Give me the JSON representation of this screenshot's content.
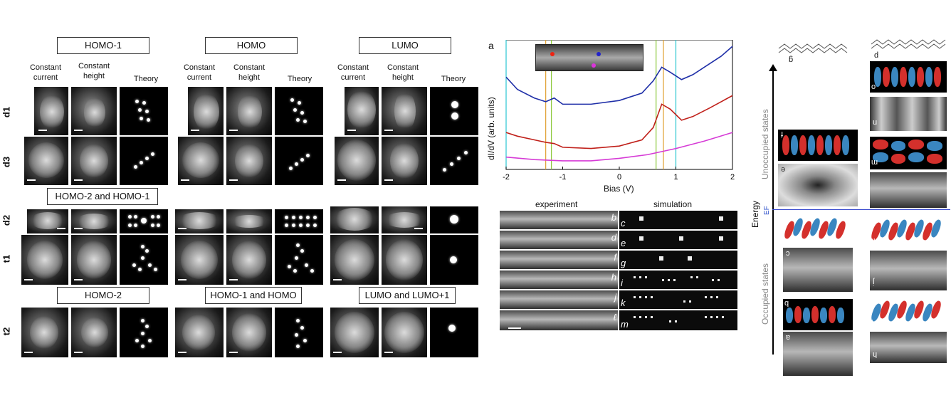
{
  "left_panel": {
    "group_titles": [
      "HOMO-1",
      "HOMO",
      "LUMO",
      "HOMO-2 and HOMO-1",
      "HOMO-2",
      "HOMO-1 and HOMO",
      "LUMO and LUMO+1"
    ],
    "col_headers": {
      "constant_current": "Constant current",
      "constant_height": "Constant height",
      "theory": "Theory"
    },
    "row_labels": [
      "d1",
      "d3",
      "d2",
      "t1",
      "t2"
    ]
  },
  "spectra": {
    "panel_label": "a",
    "ylabel": "dI/dV (arb. units)",
    "xlabel": "Bias (V)",
    "xticks": [
      "-2",
      "-1",
      "0",
      "1",
      "2"
    ],
    "colors": {
      "blue": "#1f2fa8",
      "red": "#c0201a",
      "magenta": "#d63bd6",
      "cyan": "#29c6d1",
      "orange": "#e0a030",
      "green": "#8cc83c"
    }
  },
  "chart_data": {
    "type": "line",
    "xlabel": "Bias (V)",
    "ylabel": "dI/dV (arb. units)",
    "xlim": [
      -2,
      2
    ],
    "xticks": [
      -2,
      -1,
      0,
      1,
      2
    ],
    "vertical_lines": [
      -2.0,
      -1.3,
      -1.2,
      0.65,
      0.78,
      1.0
    ],
    "series": [
      {
        "color": "#1f2fa8",
        "x": [
          -2.0,
          -1.8,
          -1.5,
          -1.3,
          -1.15,
          -1.0,
          -0.5,
          0.0,
          0.4,
          0.6,
          0.75,
          0.9,
          1.1,
          1.3,
          1.6,
          1.8,
          2.0
        ],
        "y": [
          0.75,
          0.65,
          0.58,
          0.55,
          0.58,
          0.53,
          0.53,
          0.56,
          0.62,
          0.72,
          0.83,
          0.79,
          0.73,
          0.77,
          0.86,
          0.92,
          1.0
        ]
      },
      {
        "color": "#c0201a",
        "x": [
          -2.0,
          -1.8,
          -1.5,
          -1.3,
          -1.15,
          -1.0,
          -0.5,
          0.0,
          0.4,
          0.6,
          0.75,
          0.9,
          1.1,
          1.3,
          1.6,
          1.8,
          2.0
        ],
        "y": [
          0.3,
          0.27,
          0.24,
          0.22,
          0.21,
          0.18,
          0.17,
          0.19,
          0.24,
          0.34,
          0.53,
          0.49,
          0.4,
          0.43,
          0.5,
          0.55,
          0.6
        ]
      },
      {
        "color": "#d63bd6",
        "x": [
          -2.0,
          -1.5,
          -1.0,
          -0.5,
          0.0,
          0.5,
          1.0,
          1.5,
          2.0
        ],
        "y": [
          0.1,
          0.08,
          0.07,
          0.07,
          0.09,
          0.12,
          0.17,
          0.23,
          0.3
        ]
      }
    ]
  },
  "strips": {
    "experiment_label": "experiment",
    "simulation_label": "simulation",
    "left_labels": [
      "b",
      "d",
      "f",
      "h",
      "j",
      "ℓ"
    ],
    "right_labels": [
      "c",
      "e",
      "g",
      "i",
      "k",
      "m"
    ]
  },
  "right_panel": {
    "energy_label": "Energy",
    "ef_label": "EF",
    "unoccupied_label": "Unoccupied states",
    "occupied_label": "Occupied states",
    "col1_letters": [
      "g",
      "f",
      "e",
      "d",
      "c",
      "b",
      "a"
    ],
    "col2_letters": [
      "p",
      "o",
      "n",
      "m",
      "k",
      "j",
      "i",
      "h"
    ]
  }
}
